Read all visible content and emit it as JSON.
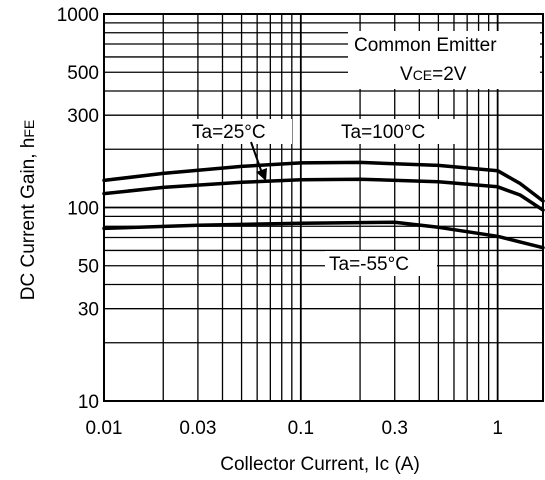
{
  "chart_data": {
    "type": "line",
    "title": "",
    "xlabel": "Collector Current, Ic (A)",
    "ylabel_main": "DC Current Gain,  h",
    "ylabel_sub": "FE",
    "x_scale": "log",
    "y_scale": "log",
    "xlim": [
      0.01,
      1.7
    ],
    "ylim": [
      10,
      1000
    ],
    "grid": true,
    "x_ticks": [
      {
        "value": 0.01,
        "label": "0.01"
      },
      {
        "value": 0.03,
        "label": "0.03"
      },
      {
        "value": 0.1,
        "label": "0.1"
      },
      {
        "value": 0.3,
        "label": "0.3"
      },
      {
        "value": 1,
        "label": "1"
      }
    ],
    "y_ticks": [
      {
        "value": 10,
        "label": "10"
      },
      {
        "value": 30,
        "label": "30"
      },
      {
        "value": 50,
        "label": "50"
      },
      {
        "value": 100,
        "label": "100"
      },
      {
        "value": 300,
        "label": "300"
      },
      {
        "value": 500,
        "label": "500"
      },
      {
        "value": 1000,
        "label": "1000"
      }
    ],
    "conditions": {
      "line1": "Common Emitter",
      "line2_prefix": "V",
      "line2_sub": "CE",
      "line2_suffix": "=2V"
    },
    "series": [
      {
        "name": "Ta=100°C",
        "points": [
          [
            0.01,
            138
          ],
          [
            0.02,
            150
          ],
          [
            0.05,
            163
          ],
          [
            0.1,
            170
          ],
          [
            0.2,
            171
          ],
          [
            0.5,
            165
          ],
          [
            1.0,
            155
          ],
          [
            1.3,
            133
          ],
          [
            1.7,
            108
          ]
        ]
      },
      {
        "name": "Ta=25°C",
        "points": [
          [
            0.01,
            118
          ],
          [
            0.02,
            127
          ],
          [
            0.05,
            135
          ],
          [
            0.1,
            139
          ],
          [
            0.2,
            140
          ],
          [
            0.5,
            136
          ],
          [
            1.0,
            128
          ],
          [
            1.3,
            116
          ],
          [
            1.7,
            97
          ]
        ]
      },
      {
        "name": "Ta=-55°C",
        "points": [
          [
            0.01,
            78
          ],
          [
            0.03,
            81
          ],
          [
            0.1,
            83
          ],
          [
            0.3,
            84
          ],
          [
            0.5,
            79
          ],
          [
            1.0,
            71
          ],
          [
            1.7,
            62
          ]
        ]
      }
    ]
  }
}
